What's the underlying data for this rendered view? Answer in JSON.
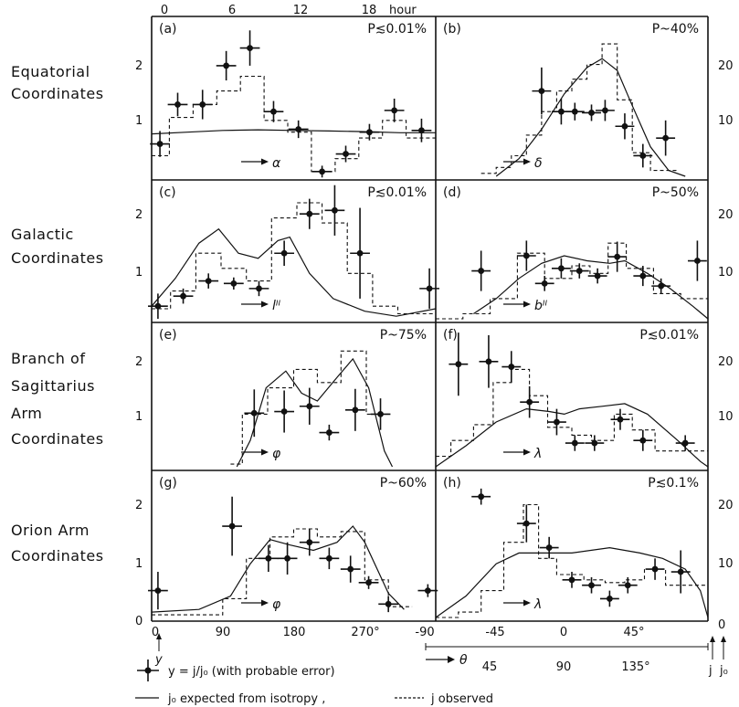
{
  "row_labels": [
    [
      "Equatorial",
      "Coordinates"
    ],
    [
      "Galactic",
      "Coordinates"
    ],
    [
      "Branch  of",
      "Sagittarius",
      "Arm",
      "Coordinates"
    ],
    [
      "Orion  Arm",
      "Coordinates"
    ]
  ],
  "top_axis": {
    "ticks": [
      "0",
      "6",
      "12",
      "18"
    ],
    "unit": "hour"
  },
  "left_y_ticks": [
    "2",
    "1",
    "0"
  ],
  "right_y_ticks": [
    "20",
    "10",
    "0"
  ],
  "bottom_axis": {
    "ticks_a": [
      "0",
      "90",
      "180",
      "270°",
      "-90"
    ],
    "ticks_b": [
      "-45",
      "0",
      "45°"
    ],
    "ticks_c": [
      "45",
      "90",
      "135°"
    ],
    "theta_label": "θ",
    "left_y_symbol": "y",
    "right_j_symbols": [
      "j",
      "j₀"
    ]
  },
  "legend": {
    "point": "y = j/j₀  (with probable error)",
    "solid": "j₀  expected from isotropy ,",
    "dashed": "j  observed"
  },
  "chart_data": [
    {
      "type": "line",
      "panel": "(a)",
      "p_value": "P≲0.01%",
      "xlabel": "α",
      "x_unit": "hour",
      "xlim": [
        0,
        24
      ],
      "y_left_lim": [
        0,
        2.5
      ],
      "y_right_lim": [
        0,
        25
      ],
      "points": [
        [
          0.7,
          0.55
        ],
        [
          2.2,
          1.22
        ],
        [
          4.3,
          1.22
        ],
        [
          6.3,
          1.88
        ],
        [
          8.3,
          2.18
        ],
        [
          10.3,
          1.1
        ],
        [
          12.4,
          0.8
        ],
        [
          14.4,
          0.08
        ],
        [
          16.4,
          0.38
        ],
        [
          18.4,
          0.75
        ],
        [
          20.5,
          1.12
        ],
        [
          22.8,
          0.78
        ]
      ],
      "errors": [
        0.22,
        0.2,
        0.25,
        0.25,
        0.3,
        0.18,
        0.15,
        0.1,
        0.14,
        0.14,
        0.2,
        0.2
      ],
      "observed_steps": [
        [
          0,
          0.35
        ],
        [
          1.5,
          1.0
        ],
        [
          3.5,
          1.22
        ],
        [
          5.5,
          1.45
        ],
        [
          7.5,
          1.7
        ],
        [
          9.5,
          0.95
        ],
        [
          11.5,
          0.75
        ],
        [
          13.5,
          0.08
        ],
        [
          15.5,
          0.3
        ],
        [
          17.5,
          0.65
        ],
        [
          19.5,
          0.95
        ],
        [
          21.5,
          0.65
        ],
        [
          24,
          0.65
        ]
      ],
      "expected_curve": [
        [
          0,
          0.72
        ],
        [
          3,
          0.75
        ],
        [
          6,
          0.78
        ],
        [
          9,
          0.79
        ],
        [
          12,
          0.78
        ],
        [
          15,
          0.77
        ],
        [
          18,
          0.76
        ],
        [
          21,
          0.74
        ],
        [
          24,
          0.74
        ]
      ]
    },
    {
      "type": "line",
      "panel": "(b)",
      "p_value": "P~40%",
      "xlabel": "δ",
      "xlim": [
        -90,
        90
      ],
      "y_left_lim": [
        0,
        2.5
      ],
      "y_right_lim": [
        0,
        25
      ],
      "points": [
        [
          -20,
          14.5
        ],
        [
          -7,
          11
        ],
        [
          2,
          11
        ],
        [
          13,
          10.8
        ],
        [
          22,
          11.2
        ],
        [
          35,
          8.5
        ],
        [
          47,
          3.5
        ],
        [
          62,
          6.5
        ]
      ],
      "errors": [
        4,
        2.2,
        1.5,
        1.4,
        1.8,
        2.2,
        2,
        3
      ],
      "observed_steps": [
        [
          -60,
          0.5
        ],
        [
          -50,
          1.5
        ],
        [
          -40,
          3.5
        ],
        [
          -30,
          7
        ],
        [
          -20,
          11
        ],
        [
          -10,
          14.5
        ],
        [
          0,
          16.5
        ],
        [
          10,
          19
        ],
        [
          20,
          22.5
        ],
        [
          30,
          13
        ],
        [
          40,
          4
        ],
        [
          52,
          1
        ],
        [
          70,
          1
        ]
      ],
      "expected_curve": [
        [
          -50,
          0
        ],
        [
          -35,
          3
        ],
        [
          -20,
          8
        ],
        [
          -5,
          14
        ],
        [
          10,
          18.5
        ],
        [
          20,
          20
        ],
        [
          30,
          18
        ],
        [
          40,
          12
        ],
        [
          52,
          5
        ],
        [
          64,
          1
        ],
        [
          75,
          0
        ]
      ]
    },
    {
      "type": "line",
      "panel": "(c)",
      "p_value": "P≲0.01%",
      "xlabel": "lᴵᴵ",
      "xlim": [
        0,
        360
      ],
      "y_left_lim": [
        0,
        2.5
      ],
      "y_right_lim": [
        0,
        25
      ],
      "points": [
        [
          8,
          0.25
        ],
        [
          40,
          0.45
        ],
        [
          72,
          0.75
        ],
        [
          104,
          0.7
        ],
        [
          136,
          0.6
        ],
        [
          168,
          1.3
        ],
        [
          200,
          2.08
        ],
        [
          232,
          2.15
        ],
        [
          264,
          1.3
        ],
        [
          352,
          0.6
        ]
      ],
      "errors": [
        0.25,
        0.15,
        0.15,
        0.12,
        0.15,
        0.25,
        0.3,
        0.5,
        0.9,
        0.4
      ],
      "observed_steps": [
        [
          0,
          0.2
        ],
        [
          24,
          0.55
        ],
        [
          56,
          1.3
        ],
        [
          88,
          1.0
        ],
        [
          120,
          0.75
        ],
        [
          152,
          2.0
        ],
        [
          184,
          2.3
        ],
        [
          216,
          1.9
        ],
        [
          248,
          0.9
        ],
        [
          280,
          0.25
        ],
        [
          312,
          0.1
        ],
        [
          360,
          0.1
        ]
      ],
      "expected_curve": [
        [
          0,
          0.25
        ],
        [
          30,
          0.8
        ],
        [
          60,
          1.5
        ],
        [
          85,
          1.78
        ],
        [
          110,
          1.3
        ],
        [
          135,
          1.2
        ],
        [
          160,
          1.55
        ],
        [
          175,
          1.62
        ],
        [
          200,
          0.9
        ],
        [
          230,
          0.4
        ],
        [
          270,
          0.15
        ],
        [
          310,
          0.05
        ],
        [
          360,
          0.2
        ]
      ]
    },
    {
      "type": "line",
      "panel": "(d)",
      "p_value": "P~50%",
      "xlabel": "bᴵᴵ",
      "xlim": [
        -90,
        90
      ],
      "y_left_lim": [
        0,
        2.5
      ],
      "y_right_lim": [
        0,
        25
      ],
      "points": [
        [
          -60,
          9.5
        ],
        [
          -30,
          12.5
        ],
        [
          -18,
          7
        ],
        [
          -7,
          10
        ],
        [
          5,
          9.5
        ],
        [
          17,
          8.5
        ],
        [
          30,
          12.3
        ],
        [
          47,
          8.5
        ],
        [
          59,
          6.5
        ],
        [
          83,
          11.5
        ]
      ],
      "errors": [
        4,
        3,
        1.5,
        2,
        1.5,
        1.5,
        3,
        2,
        1.5,
        4
      ],
      "observed_steps": [
        [
          -90,
          0
        ],
        [
          -72,
          1
        ],
        [
          -54,
          4
        ],
        [
          -36,
          13
        ],
        [
          -18,
          8
        ],
        [
          0,
          10.5
        ],
        [
          12,
          9
        ],
        [
          24,
          15
        ],
        [
          36,
          10
        ],
        [
          54,
          5
        ],
        [
          72,
          4
        ],
        [
          90,
          4
        ]
      ],
      "expected_curve": [
        [
          -65,
          1
        ],
        [
          -50,
          4
        ],
        [
          -35,
          8
        ],
        [
          -20,
          11
        ],
        [
          -5,
          12.5
        ],
        [
          10,
          11.5
        ],
        [
          25,
          11
        ],
        [
          35,
          11.5
        ],
        [
          50,
          9
        ],
        [
          65,
          6
        ],
        [
          80,
          2.5
        ],
        [
          90,
          0
        ]
      ]
    },
    {
      "type": "line",
      "panel": "(e)",
      "p_value": "P~75%",
      "xlabel": "φ",
      "xlim": [
        0,
        360
      ],
      "y_left_lim": [
        0,
        2.5
      ],
      "y_right_lim": [
        0,
        25
      ],
      "points": [
        [
          130,
          1.02
        ],
        [
          168,
          1.05
        ],
        [
          200,
          1.15
        ],
        [
          225,
          0.65
        ],
        [
          258,
          1.08
        ],
        [
          290,
          1.0
        ]
      ],
      "errors": [
        0.45,
        0.4,
        0.35,
        0.15,
        0.4,
        0.3
      ],
      "observed_steps": [
        [
          100,
          0.05
        ],
        [
          115,
          1.0
        ],
        [
          147,
          1.5
        ],
        [
          180,
          1.85
        ],
        [
          210,
          1.6
        ],
        [
          240,
          2.2
        ],
        [
          272,
          1.0
        ],
        [
          304,
          1.0
        ]
      ],
      "expected_curve": [
        [
          108,
          0
        ],
        [
          125,
          0.5
        ],
        [
          145,
          1.5
        ],
        [
          170,
          1.82
        ],
        [
          190,
          1.4
        ],
        [
          210,
          1.25
        ],
        [
          235,
          1.7
        ],
        [
          255,
          2.05
        ],
        [
          275,
          1.5
        ],
        [
          295,
          0.3
        ],
        [
          305,
          0
        ]
      ]
    },
    {
      "type": "line",
      "panel": "(f)",
      "p_value": "P≲0.01%",
      "xlabel": "λ",
      "xlim": [
        -90,
        90
      ],
      "y_left_lim": [
        0,
        2.5
      ],
      "y_right_lim": [
        0,
        25
      ],
      "points": [
        [
          -75,
          19.5
        ],
        [
          -55,
          20
        ],
        [
          -40,
          19
        ],
        [
          -28,
          12.3
        ],
        [
          -10,
          8.5
        ],
        [
          2,
          4.5
        ],
        [
          15,
          4.5
        ],
        [
          32,
          9
        ],
        [
          47,
          5
        ],
        [
          75,
          4.5
        ]
      ],
      "errors": [
        6,
        5,
        3,
        3,
        2.5,
        1.5,
        1.5,
        2,
        2,
        1.5
      ],
      "observed_steps": [
        [
          -90,
          2
        ],
        [
          -80,
          5
        ],
        [
          -65,
          8
        ],
        [
          -52,
          16
        ],
        [
          -40,
          18.5
        ],
        [
          -28,
          13.5
        ],
        [
          -16,
          7.5
        ],
        [
          0,
          6
        ],
        [
          13,
          5
        ],
        [
          28,
          10
        ],
        [
          40,
          7
        ],
        [
          55,
          3
        ],
        [
          90,
          3
        ]
      ],
      "expected_curve": [
        [
          -90,
          0
        ],
        [
          -70,
          4
        ],
        [
          -50,
          8.5
        ],
        [
          -30,
          11
        ],
        [
          -15,
          10.5
        ],
        [
          -5,
          10
        ],
        [
          5,
          11
        ],
        [
          20,
          11.5
        ],
        [
          35,
          12
        ],
        [
          50,
          10
        ],
        [
          70,
          5
        ],
        [
          85,
          1
        ],
        [
          90,
          0
        ]
      ]
    },
    {
      "type": "line",
      "panel": "(g)",
      "p_value": "P~60%",
      "xlabel": "φ",
      "xlim": [
        0,
        360
      ],
      "y_left_lim": [
        0,
        2.5
      ],
      "y_right_lim": [
        0,
        25
      ],
      "points": [
        [
          8,
          0.5
        ],
        [
          102,
          1.7
        ],
        [
          148,
          1.1
        ],
        [
          172,
          1.1
        ],
        [
          200,
          1.4
        ],
        [
          225,
          1.1
        ],
        [
          252,
          0.9
        ],
        [
          275,
          0.65
        ],
        [
          300,
          0.25
        ],
        [
          350,
          0.5
        ]
      ],
      "errors": [
        0.35,
        0.55,
        0.25,
        0.3,
        0.25,
        0.2,
        0.25,
        0.12,
        0.15,
        0.12
      ],
      "observed_steps": [
        [
          0,
          0.05
        ],
        [
          90,
          0.35
        ],
        [
          120,
          1.1
        ],
        [
          150,
          1.5
        ],
        [
          180,
          1.65
        ],
        [
          210,
          1.5
        ],
        [
          240,
          1.6
        ],
        [
          270,
          0.7
        ],
        [
          300,
          0.2
        ],
        [
          330,
          0.2
        ]
      ],
      "expected_curve": [
        [
          0,
          0.1
        ],
        [
          60,
          0.15
        ],
        [
          100,
          0.4
        ],
        [
          125,
          1.0
        ],
        [
          150,
          1.45
        ],
        [
          175,
          1.35
        ],
        [
          205,
          1.25
        ],
        [
          235,
          1.4
        ],
        [
          255,
          1.7
        ],
        [
          270,
          1.4
        ],
        [
          300,
          0.45
        ],
        [
          320,
          0.15
        ]
      ]
    },
    {
      "type": "line",
      "panel": "(h)",
      "p_value": "P≲0.1%",
      "xlabel": "λ",
      "xlim": [
        -90,
        90
      ],
      "y_left_lim": [
        0,
        2.5
      ],
      "y_right_lim": [
        0,
        25
      ],
      "points": [
        [
          -60,
          22.5
        ],
        [
          -30,
          17.5
        ],
        [
          -15,
          13
        ],
        [
          0,
          7
        ],
        [
          13,
          6
        ],
        [
          25,
          3.5
        ],
        [
          37,
          6
        ],
        [
          55,
          9
        ],
        [
          72,
          8.5
        ]
      ],
      "errors": [
        1.5,
        3.5,
        2,
        1.5,
        1.5,
        1.5,
        1.5,
        2,
        4
      ],
      "observed_steps": [
        [
          -90,
          0
        ],
        [
          -75,
          1
        ],
        [
          -60,
          5
        ],
        [
          -45,
          14
        ],
        [
          -32,
          21
        ],
        [
          -22,
          11
        ],
        [
          -10,
          8
        ],
        [
          8,
          7
        ],
        [
          22,
          6.5
        ],
        [
          35,
          7
        ],
        [
          48,
          9
        ],
        [
          62,
          6
        ],
        [
          80,
          6
        ],
        [
          90,
          6
        ]
      ],
      "expected_curve": [
        [
          -90,
          0
        ],
        [
          -70,
          4
        ],
        [
          -50,
          10
        ],
        [
          -35,
          12
        ],
        [
          -20,
          12
        ],
        [
          0,
          12
        ],
        [
          25,
          13
        ],
        [
          45,
          12
        ],
        [
          60,
          11
        ],
        [
          75,
          9
        ],
        [
          85,
          5
        ],
        [
          90,
          0
        ]
      ]
    }
  ]
}
